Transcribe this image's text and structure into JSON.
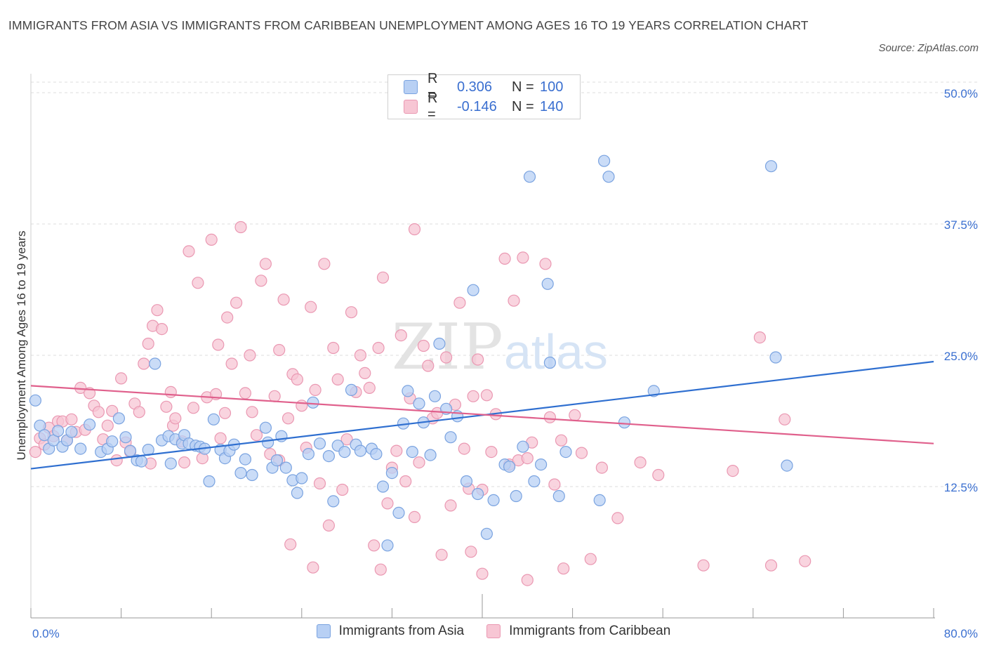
{
  "title": "IMMIGRANTS FROM ASIA VS IMMIGRANTS FROM CARIBBEAN UNEMPLOYMENT AMONG AGES 16 TO 19 YEARS CORRELATION CHART",
  "source": "Source: ZipAtlas.com",
  "watermark": {
    "zip": "ZIP",
    "atlas": "atlas"
  },
  "legend": {
    "rows": [
      {
        "r_label": "R =",
        "r_value": "0.306",
        "n_label": "N =",
        "n_value": "100"
      },
      {
        "r_label": "R =",
        "r_value": "-0.146",
        "n_label": "N =",
        "n_value": "140"
      }
    ]
  },
  "colors": {
    "asia_fill": "#b8d0f4",
    "asia_stroke": "#7aa3e0",
    "asia_line": "#2f6fd0",
    "carib_fill": "#f7c6d4",
    "carib_stroke": "#ea98b2",
    "carib_line": "#e0608c",
    "tick_text": "#3a6fd0",
    "grid": "#dcdcdc"
  },
  "chart_data": {
    "type": "scatter",
    "title": "IMMIGRANTS FROM ASIA VS IMMIGRANTS FROM CARIBBEAN UNEMPLOYMENT AMONG AGES 16 TO 19 YEARS CORRELATION CHART",
    "xlabel": "",
    "ylabel": "Unemployment Among Ages 16 to 19 years",
    "xlim": [
      0,
      80
    ],
    "ylim": [
      0,
      50
    ],
    "x_tick_labels": [
      "0.0%",
      "80.0%"
    ],
    "y_ticks": [
      12.5,
      25.0,
      37.5,
      50.0
    ],
    "y_tick_labels": [
      "12.5%",
      "25.0%",
      "37.5%",
      "50.0%"
    ],
    "grid": true,
    "legend_position": "top-center",
    "series": [
      {
        "name": "Immigrants from Asia",
        "trend": {
          "x": [
            0,
            80
          ],
          "y": [
            14.2,
            24.4
          ]
        },
        "points": [
          [
            0.4,
            20.7
          ],
          [
            0.8,
            18.3
          ],
          [
            1.2,
            17.4
          ],
          [
            1.6,
            16.1
          ],
          [
            2.0,
            16.9
          ],
          [
            2.4,
            17.8
          ],
          [
            2.8,
            16.3
          ],
          [
            3.2,
            16.9
          ],
          [
            3.6,
            17.7
          ],
          [
            4.4,
            16.1
          ],
          [
            5.2,
            18.4
          ],
          [
            6.2,
            15.8
          ],
          [
            6.8,
            16.1
          ],
          [
            7.2,
            16.8
          ],
          [
            7.8,
            19.0
          ],
          [
            8.4,
            17.2
          ],
          [
            8.8,
            15.9
          ],
          [
            9.4,
            15.0
          ],
          [
            9.8,
            14.9
          ],
          [
            10.4,
            16.0
          ],
          [
            11.0,
            24.2
          ],
          [
            11.6,
            16.9
          ],
          [
            12.2,
            17.3
          ],
          [
            12.4,
            14.7
          ],
          [
            12.8,
            17.0
          ],
          [
            13.4,
            16.6
          ],
          [
            13.6,
            17.4
          ],
          [
            14.0,
            16.6
          ],
          [
            14.6,
            16.4
          ],
          [
            15.0,
            16.3
          ],
          [
            15.4,
            16.1
          ],
          [
            15.8,
            13.0
          ],
          [
            16.2,
            18.9
          ],
          [
            16.8,
            16.0
          ],
          [
            17.2,
            15.2
          ],
          [
            17.6,
            15.9
          ],
          [
            18.0,
            16.5
          ],
          [
            18.6,
            13.8
          ],
          [
            19.0,
            15.1
          ],
          [
            19.6,
            13.6
          ],
          [
            20.8,
            18.1
          ],
          [
            21.0,
            16.7
          ],
          [
            21.4,
            14.3
          ],
          [
            21.8,
            15.0
          ],
          [
            22.2,
            17.3
          ],
          [
            22.6,
            14.3
          ],
          [
            23.2,
            13.1
          ],
          [
            23.6,
            11.9
          ],
          [
            24.0,
            13.3
          ],
          [
            24.6,
            15.6
          ],
          [
            25.0,
            20.5
          ],
          [
            25.6,
            16.6
          ],
          [
            26.4,
            15.4
          ],
          [
            26.8,
            11.1
          ],
          [
            27.2,
            16.4
          ],
          [
            27.8,
            15.8
          ],
          [
            28.4,
            21.7
          ],
          [
            28.8,
            16.5
          ],
          [
            29.2,
            15.9
          ],
          [
            30.2,
            16.1
          ],
          [
            30.6,
            15.6
          ],
          [
            31.2,
            12.5
          ],
          [
            31.6,
            6.9
          ],
          [
            32.0,
            13.8
          ],
          [
            32.6,
            10.0
          ],
          [
            33.0,
            18.5
          ],
          [
            33.4,
            21.6
          ],
          [
            33.8,
            15.8
          ],
          [
            34.4,
            20.4
          ],
          [
            34.8,
            18.6
          ],
          [
            35.4,
            15.5
          ],
          [
            35.8,
            21.1
          ],
          [
            36.2,
            26.1
          ],
          [
            36.8,
            19.9
          ],
          [
            37.2,
            17.2
          ],
          [
            37.8,
            19.2
          ],
          [
            38.6,
            13.0
          ],
          [
            39.2,
            31.2
          ],
          [
            39.6,
            11.8
          ],
          [
            40.4,
            8.0
          ],
          [
            41.0,
            11.2
          ],
          [
            42.0,
            14.6
          ],
          [
            42.4,
            14.4
          ],
          [
            43.0,
            11.6
          ],
          [
            43.6,
            16.3
          ],
          [
            44.2,
            42.0
          ],
          [
            44.6,
            13.0
          ],
          [
            45.2,
            14.6
          ],
          [
            45.8,
            31.8
          ],
          [
            46.0,
            24.3
          ],
          [
            46.8,
            11.6
          ],
          [
            47.4,
            15.8
          ],
          [
            50.4,
            11.2
          ],
          [
            50.8,
            43.5
          ],
          [
            51.2,
            42.0
          ],
          [
            52.6,
            18.6
          ],
          [
            55.2,
            21.6
          ],
          [
            65.6,
            43.0
          ],
          [
            66.0,
            24.8
          ],
          [
            67.0,
            14.5
          ]
        ]
      },
      {
        "name": "Immigrants from Caribbean",
        "trend": {
          "x": [
            0,
            80
          ],
          "y": [
            22.1,
            16.6
          ]
        },
        "points": [
          [
            0.4,
            15.8
          ],
          [
            0.8,
            17.1
          ],
          [
            1.2,
            16.5
          ],
          [
            1.6,
            18.1
          ],
          [
            2.0,
            17.3
          ],
          [
            2.4,
            18.7
          ],
          [
            2.8,
            18.7
          ],
          [
            3.2,
            16.9
          ],
          [
            3.6,
            18.9
          ],
          [
            4.0,
            17.7
          ],
          [
            4.4,
            21.9
          ],
          [
            4.8,
            17.9
          ],
          [
            5.2,
            21.4
          ],
          [
            5.6,
            20.2
          ],
          [
            6.0,
            19.6
          ],
          [
            6.4,
            17.0
          ],
          [
            6.8,
            18.3
          ],
          [
            7.2,
            19.7
          ],
          [
            7.6,
            15.0
          ],
          [
            8.0,
            22.8
          ],
          [
            8.4,
            16.7
          ],
          [
            8.8,
            15.8
          ],
          [
            9.2,
            20.4
          ],
          [
            9.6,
            19.6
          ],
          [
            10.0,
            24.2
          ],
          [
            10.4,
            26.1
          ],
          [
            10.6,
            14.7
          ],
          [
            10.8,
            27.8
          ],
          [
            11.2,
            29.3
          ],
          [
            11.6,
            27.5
          ],
          [
            12.0,
            20.1
          ],
          [
            12.4,
            21.5
          ],
          [
            12.6,
            18.3
          ],
          [
            12.8,
            19.0
          ],
          [
            13.4,
            16.8
          ],
          [
            13.6,
            14.8
          ],
          [
            14.0,
            34.9
          ],
          [
            14.4,
            20.0
          ],
          [
            14.8,
            31.9
          ],
          [
            15.2,
            15.2
          ],
          [
            15.6,
            21.0
          ],
          [
            16.0,
            36.0
          ],
          [
            16.4,
            21.3
          ],
          [
            16.6,
            26.0
          ],
          [
            16.8,
            17.1
          ],
          [
            17.2,
            19.5
          ],
          [
            17.4,
            28.6
          ],
          [
            17.8,
            24.2
          ],
          [
            18.2,
            30.0
          ],
          [
            18.6,
            37.2
          ],
          [
            19.0,
            21.4
          ],
          [
            19.4,
            25.0
          ],
          [
            19.6,
            19.6
          ],
          [
            20.0,
            17.4
          ],
          [
            20.4,
            32.1
          ],
          [
            20.8,
            33.7
          ],
          [
            21.2,
            15.6
          ],
          [
            21.6,
            21.1
          ],
          [
            22.0,
            25.5
          ],
          [
            22.4,
            30.3
          ],
          [
            22.8,
            19.0
          ],
          [
            23.2,
            23.2
          ],
          [
            23.6,
            22.7
          ],
          [
            24.0,
            20.2
          ],
          [
            24.4,
            16.2
          ],
          [
            24.8,
            29.6
          ],
          [
            25.2,
            21.7
          ],
          [
            25.6,
            12.8
          ],
          [
            26.0,
            33.7
          ],
          [
            26.4,
            8.8
          ],
          [
            26.8,
            25.7
          ],
          [
            27.2,
            22.7
          ],
          [
            27.6,
            12.2
          ],
          [
            28.0,
            17.0
          ],
          [
            28.4,
            29.1
          ],
          [
            28.8,
            21.5
          ],
          [
            29.2,
            25.0
          ],
          [
            29.6,
            23.3
          ],
          [
            30.0,
            21.9
          ],
          [
            30.4,
            6.9
          ],
          [
            30.8,
            25.7
          ],
          [
            31.2,
            32.4
          ],
          [
            31.6,
            10.9
          ],
          [
            32.0,
            14.3
          ],
          [
            32.4,
            15.9
          ],
          [
            32.8,
            26.9
          ],
          [
            33.2,
            13.0
          ],
          [
            33.6,
            20.9
          ],
          [
            34.0,
            37.0
          ],
          [
            34.4,
            14.8
          ],
          [
            34.8,
            25.9
          ],
          [
            35.2,
            24.0
          ],
          [
            35.6,
            19.0
          ],
          [
            36.0,
            19.5
          ],
          [
            36.4,
            6.0
          ],
          [
            36.8,
            24.8
          ],
          [
            37.2,
            10.7
          ],
          [
            37.6,
            20.3
          ],
          [
            38.0,
            30.0
          ],
          [
            38.4,
            16.1
          ],
          [
            38.8,
            12.3
          ],
          [
            39.2,
            21.1
          ],
          [
            39.6,
            24.6
          ],
          [
            40.0,
            12.2
          ],
          [
            40.4,
            21.2
          ],
          [
            40.8,
            15.8
          ],
          [
            41.2,
            19.4
          ],
          [
            42.0,
            34.2
          ],
          [
            42.4,
            14.6
          ],
          [
            42.8,
            30.2
          ],
          [
            43.2,
            15.0
          ],
          [
            43.6,
            34.3
          ],
          [
            44.0,
            15.2
          ],
          [
            44.4,
            16.7
          ],
          [
            45.6,
            33.7
          ],
          [
            46.4,
            12.7
          ],
          [
            47.2,
            4.7
          ],
          [
            48.2,
            19.3
          ],
          [
            48.8,
            15.7
          ],
          [
            49.6,
            5.6
          ],
          [
            50.6,
            14.3
          ],
          [
            52.0,
            9.5
          ],
          [
            54.0,
            14.8
          ],
          [
            55.6,
            13.6
          ],
          [
            59.6,
            5.0
          ],
          [
            62.2,
            14.0
          ],
          [
            64.6,
            26.7
          ],
          [
            65.6,
            5.0
          ],
          [
            66.8,
            18.9
          ],
          [
            68.6,
            5.4
          ],
          [
            22.0,
            15.0
          ],
          [
            23.0,
            7.0
          ],
          [
            25.0,
            4.8
          ],
          [
            31.0,
            4.6
          ],
          [
            34.0,
            9.6
          ],
          [
            39.0,
            6.3
          ],
          [
            40.0,
            4.2
          ],
          [
            44.0,
            3.6
          ],
          [
            46.0,
            19.1
          ],
          [
            47.0,
            16.9
          ]
        ]
      }
    ]
  },
  "bottom_legend": [
    "Immigrants from Asia",
    "Immigrants from Caribbean"
  ]
}
